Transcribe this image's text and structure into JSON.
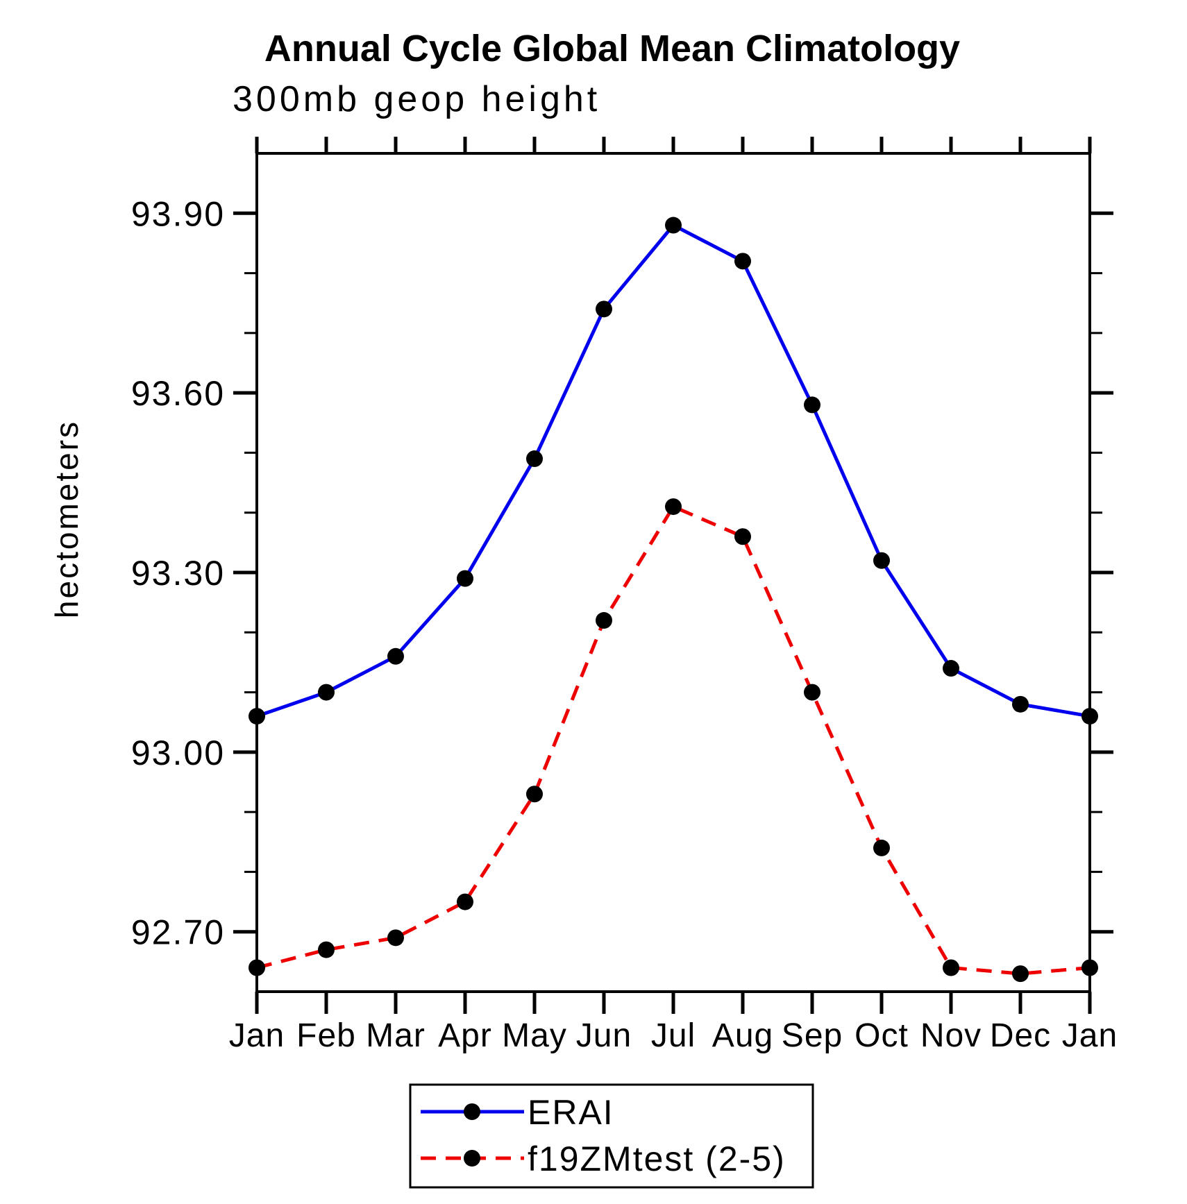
{
  "figure": {
    "background": "#ffffff",
    "frame_color": "#000000"
  },
  "chart_data": {
    "type": "line",
    "title": "Annual Cycle Global Mean Climatology",
    "subtitle": "300mb geop height",
    "xlabel": "",
    "ylabel": "hectometers",
    "categories": [
      "Jan",
      "Feb",
      "Mar",
      "Apr",
      "May",
      "Jun",
      "Jul",
      "Aug",
      "Sep",
      "Oct",
      "Nov",
      "Dec",
      "Jan"
    ],
    "ylim": [
      92.6,
      94.0
    ],
    "yticks": {
      "major": {
        "values": [
          93.9,
          93.6,
          93.3,
          93.0,
          92.7
        ],
        "labels": [
          "93.90",
          "93.60",
          "93.30",
          "93.00",
          "92.70"
        ]
      },
      "minor_step": 0.1
    },
    "grid": false,
    "legend_position": "bottom-center",
    "series": [
      {
        "name": "ERAI",
        "color": "#0000ee",
        "style": "solid",
        "marker": "circle",
        "marker_color": "#000000",
        "values": [
          93.06,
          93.1,
          93.16,
          93.29,
          93.49,
          93.74,
          93.88,
          93.82,
          93.58,
          93.32,
          93.14,
          93.08,
          93.06
        ]
      },
      {
        "name": "f19ZMtest (2-5)",
        "color": "#ee0000",
        "style": "dashed",
        "marker": "circle",
        "marker_color": "#000000",
        "values": [
          92.64,
          92.67,
          92.69,
          92.75,
          92.93,
          93.22,
          93.41,
          93.36,
          93.1,
          92.84,
          92.64,
          92.63,
          92.64
        ]
      }
    ]
  }
}
